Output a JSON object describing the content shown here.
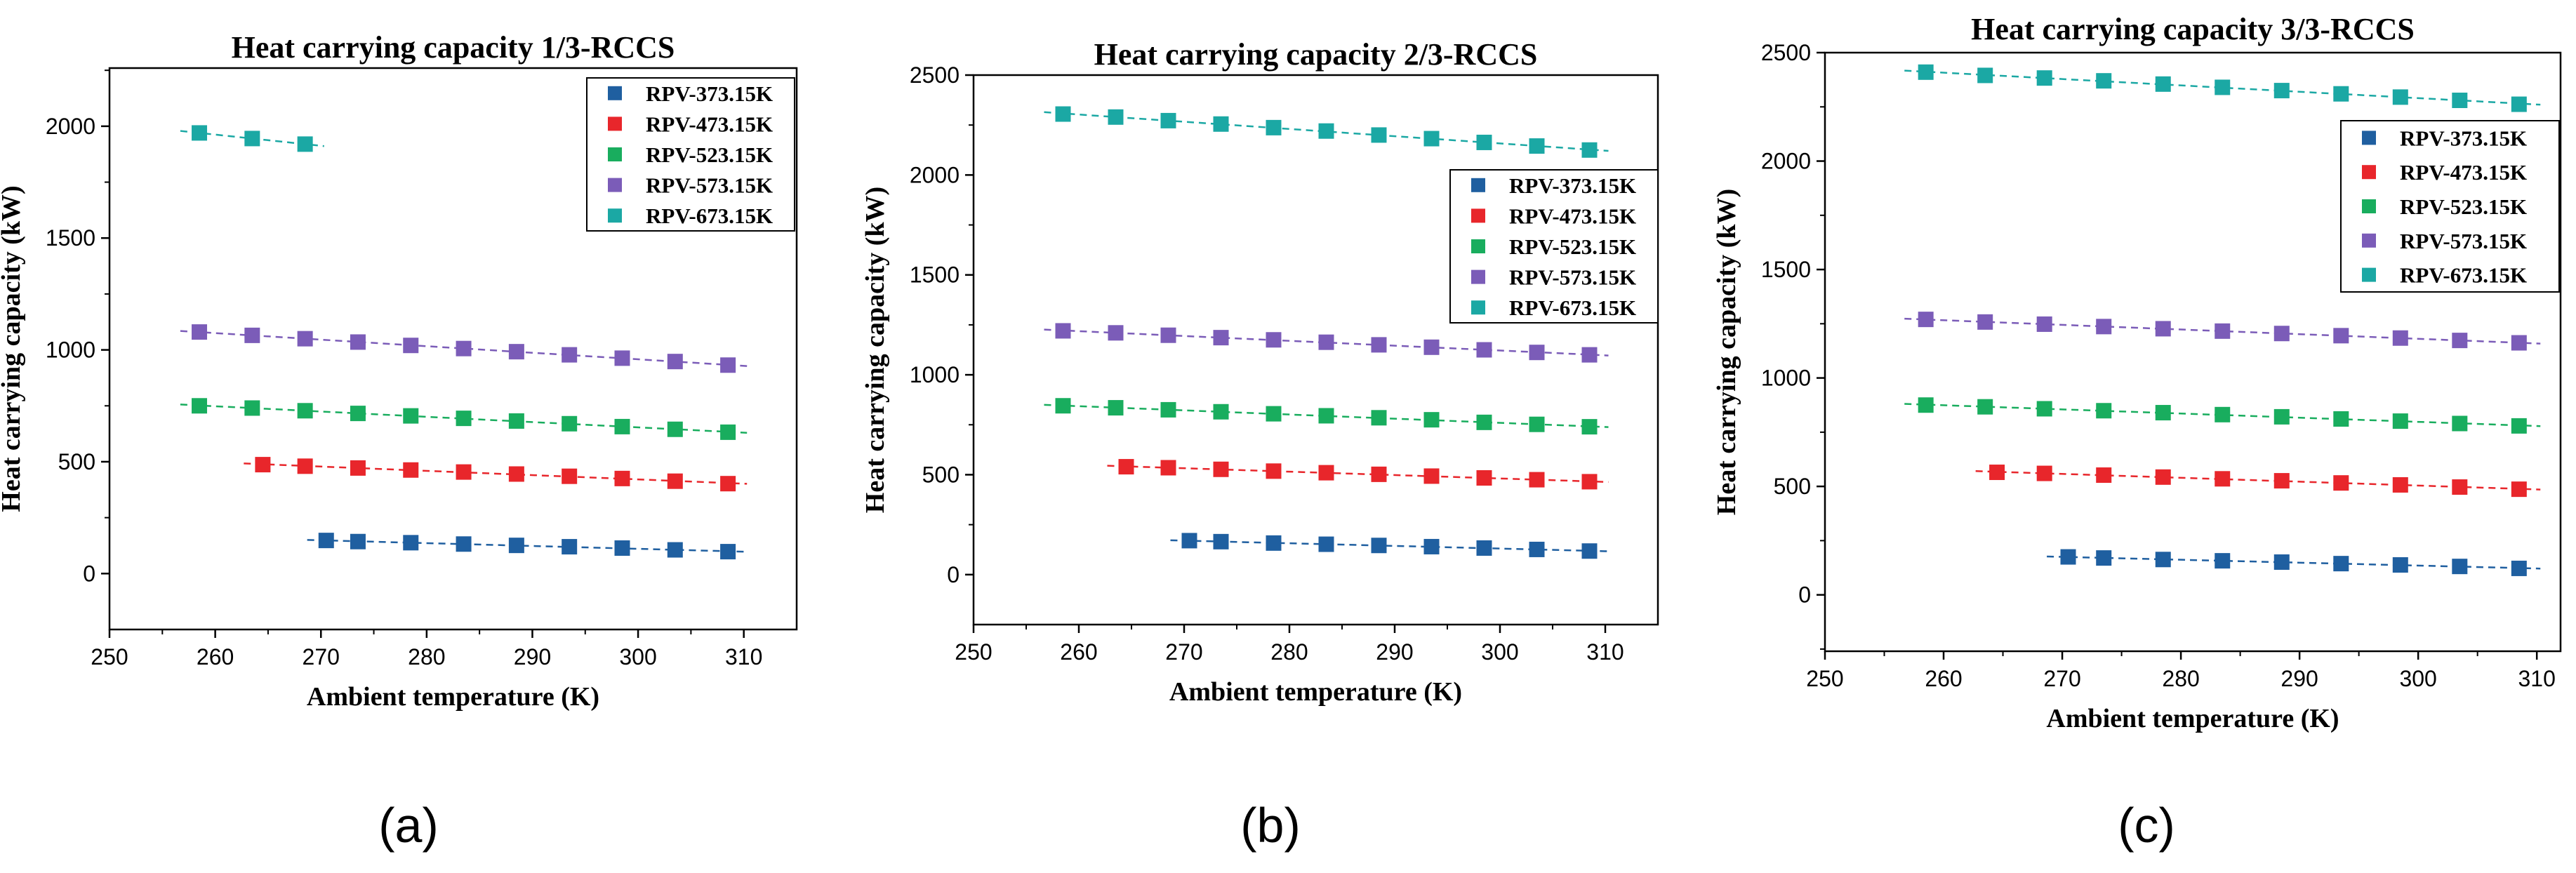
{
  "figure": {
    "panel_labels": [
      "(a)",
      "(b)",
      "(c)"
    ]
  },
  "colors": {
    "RPV-373.15K": "#1f5fa0",
    "RPV-473.15K": "#e8262b",
    "RPV-523.15K": "#19ad5e",
    "RPV-573.15K": "#7b5cb8",
    "RPV-673.15K": "#1ba8a4"
  },
  "chart_data": [
    {
      "type": "scatter",
      "title": "Heat carrying capacity 1/3-RCCS",
      "xlabel": "Ambient temperature (K)",
      "ylabel": "Heat carrying capacity (kW)",
      "xlim": [
        250,
        315
      ],
      "ylim": [
        -250,
        2260
      ],
      "xticks": [
        250,
        260,
        270,
        280,
        290,
        300,
        310
      ],
      "yticks": [
        0,
        500,
        1000,
        1500,
        2000
      ],
      "legend_position": "top-right",
      "fit_lines": "dashed linear fit per series",
      "series": [
        {
          "name": "RPV-373.15K",
          "x": [
            270.5,
            273.5,
            278.5,
            283.5,
            288.5,
            293.5,
            298.5,
            303.5,
            308.5
          ],
          "values": [
            148,
            143,
            138,
            132,
            126,
            120,
            114,
            106,
            98
          ]
        },
        {
          "name": "RPV-473.15K",
          "x": [
            264.5,
            268.5,
            273.5,
            278.5,
            283.5,
            288.5,
            293.5,
            298.5,
            303.5,
            308.5
          ],
          "values": [
            487,
            480,
            472,
            463,
            454,
            445,
            435,
            425,
            413,
            402
          ]
        },
        {
          "name": "RPV-523.15K",
          "x": [
            258.5,
            263.5,
            268.5,
            273.5,
            278.5,
            283.5,
            288.5,
            293.5,
            298.5,
            303.5,
            308.5
          ],
          "values": [
            750,
            740,
            728,
            716,
            705,
            694,
            682,
            670,
            657,
            645,
            632
          ]
        },
        {
          "name": "RPV-573.15K",
          "x": [
            258.5,
            263.5,
            268.5,
            273.5,
            278.5,
            283.5,
            288.5,
            293.5,
            298.5,
            303.5,
            308.5
          ],
          "values": [
            1080,
            1065,
            1050,
            1035,
            1020,
            1006,
            992,
            978,
            963,
            948,
            932
          ]
        },
        {
          "name": "RPV-673.15K",
          "x": [
            258.5,
            263.5,
            268.5
          ],
          "values": [
            1970,
            1945,
            1920
          ]
        }
      ]
    },
    {
      "type": "scatter",
      "title": "Heat carrying capacity 2/3-RCCS",
      "xlabel": "Ambient temperature (K)",
      "ylabel": "Heat carrying capacity (kW)",
      "xlim": [
        250,
        315
      ],
      "ylim": [
        -250,
        2500
      ],
      "xticks": [
        250,
        260,
        270,
        280,
        290,
        300,
        310
      ],
      "yticks": [
        0,
        500,
        1000,
        1500,
        2000,
        2500
      ],
      "legend_position": "center-right",
      "fit_lines": "dashed linear fit per series",
      "series": [
        {
          "name": "RPV-373.15K",
          "x": [
            270.5,
            273.5,
            278.5,
            283.5,
            288.5,
            293.5,
            298.5,
            303.5,
            308.5
          ],
          "values": [
            170,
            165,
            158,
            152,
            146,
            140,
            133,
            126,
            118
          ]
        },
        {
          "name": "RPV-473.15K",
          "x": [
            264.5,
            268.5,
            273.5,
            278.5,
            283.5,
            288.5,
            293.5,
            298.5,
            303.5,
            308.5
          ],
          "values": [
            540,
            535,
            527,
            518,
            510,
            502,
            493,
            484,
            475,
            465
          ]
        },
        {
          "name": "RPV-523.15K",
          "x": [
            258.5,
            263.5,
            268.5,
            273.5,
            278.5,
            283.5,
            288.5,
            293.5,
            298.5,
            303.5,
            308.5
          ],
          "values": [
            845,
            835,
            825,
            815,
            805,
            795,
            785,
            775,
            762,
            752,
            740
          ]
        },
        {
          "name": "RPV-573.15K",
          "x": [
            258.5,
            263.5,
            268.5,
            273.5,
            278.5,
            283.5,
            288.5,
            293.5,
            298.5,
            303.5,
            308.5
          ],
          "values": [
            1220,
            1210,
            1198,
            1186,
            1175,
            1163,
            1150,
            1138,
            1125,
            1112,
            1100
          ]
        },
        {
          "name": "RPV-673.15K",
          "x": [
            258.5,
            263.5,
            268.5,
            273.5,
            278.5,
            283.5,
            288.5,
            293.5,
            298.5,
            303.5,
            308.5
          ],
          "values": [
            2305,
            2290,
            2272,
            2255,
            2237,
            2220,
            2200,
            2182,
            2163,
            2145,
            2125
          ]
        }
      ]
    },
    {
      "type": "scatter",
      "title": "Heat carrying capacity 3/3-RCCS",
      "xlabel": "Ambient temperature (K)",
      "ylabel": "Heat carrying capacity (kW)",
      "xlim": [
        250,
        312
      ],
      "ylim": [
        -260,
        2500
      ],
      "xticks": [
        250,
        260,
        270,
        280,
        290,
        300,
        310
      ],
      "yticks": [
        0,
        500,
        1000,
        1500,
        2000,
        2500
      ],
      "legend_position": "center-right",
      "fit_lines": "dashed linear fit per series",
      "series": [
        {
          "name": "RPV-373.15K",
          "x": [
            270.5,
            273.5,
            278.5,
            283.5,
            288.5,
            293.5,
            298.5,
            303.5,
            308.5
          ],
          "values": [
            175,
            170,
            163,
            157,
            151,
            144,
            138,
            131,
            122
          ]
        },
        {
          "name": "RPV-473.15K",
          "x": [
            264.5,
            268.5,
            273.5,
            278.5,
            283.5,
            288.5,
            293.5,
            298.5,
            303.5,
            308.5
          ],
          "values": [
            565,
            560,
            552,
            543,
            535,
            526,
            516,
            507,
            497,
            487
          ]
        },
        {
          "name": "RPV-523.15K",
          "x": [
            258.5,
            263.5,
            268.5,
            273.5,
            278.5,
            283.5,
            288.5,
            293.5,
            298.5,
            303.5,
            308.5
          ],
          "values": [
            875,
            867,
            858,
            849,
            840,
            831,
            821,
            811,
            801,
            790,
            779
          ]
        },
        {
          "name": "RPV-573.15K",
          "x": [
            258.5,
            263.5,
            268.5,
            273.5,
            278.5,
            283.5,
            288.5,
            293.5,
            298.5,
            303.5,
            308.5
          ],
          "values": [
            1270,
            1258,
            1248,
            1237,
            1227,
            1216,
            1205,
            1195,
            1184,
            1173,
            1162
          ]
        },
        {
          "name": "RPV-673.15K",
          "x": [
            258.5,
            263.5,
            268.5,
            273.5,
            278.5,
            283.5,
            288.5,
            293.5,
            298.5,
            303.5,
            308.5
          ],
          "values": [
            2410,
            2395,
            2383,
            2370,
            2355,
            2340,
            2325,
            2310,
            2295,
            2280,
            2262
          ]
        }
      ]
    }
  ]
}
